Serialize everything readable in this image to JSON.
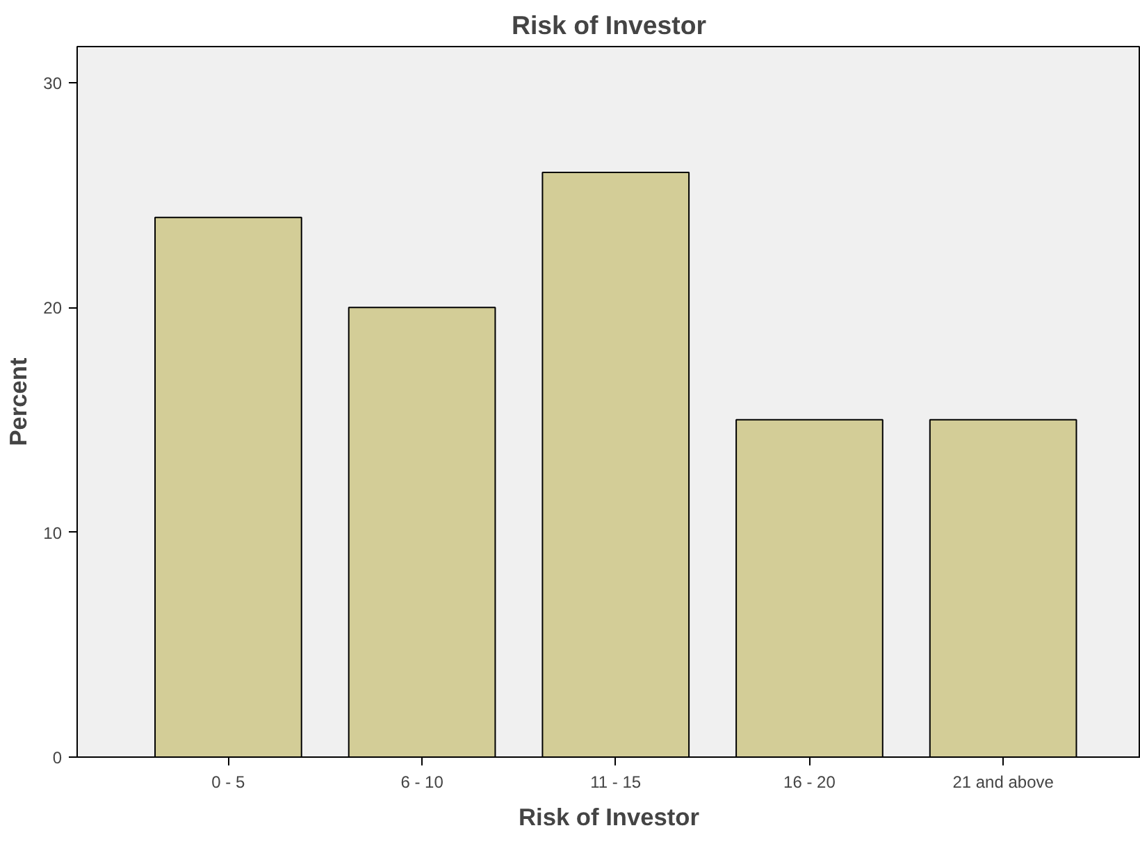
{
  "chart_data": {
    "type": "bar",
    "title": "Risk of Investor",
    "xlabel": "Risk of Investor",
    "ylabel": "Percent",
    "categories": [
      "0 - 5",
      "6 - 10",
      "11 - 15",
      "16 - 20",
      "21 and above"
    ],
    "values": [
      24,
      20,
      26,
      15,
      15
    ],
    "color": "#d3cd97",
    "ylim": [
      0,
      31.6
    ],
    "yticks": [
      0,
      10,
      20,
      30
    ],
    "grid": false
  }
}
